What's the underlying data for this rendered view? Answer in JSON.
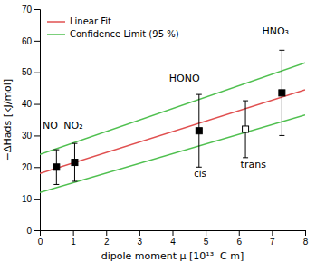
{
  "chart_data": {
    "type": "scatter",
    "xlabel": "dipole moment μ [10¹³  C m]",
    "ylabel": "−ΔHads [kJ/mol]",
    "xlim": [
      0,
      8
    ],
    "ylim": [
      0,
      70
    ],
    "xticks": [
      0,
      1,
      2,
      3,
      4,
      5,
      6,
      7,
      8
    ],
    "yticks": [
      0,
      10,
      20,
      30,
      40,
      50,
      60,
      70
    ],
    "legend": "upper left",
    "series": [
      {
        "name": "Linear Fit",
        "type": "line",
        "color": "#e05050",
        "x": [
          0.0,
          8.0
        ],
        "values": [
          18.0,
          44.5
        ]
      },
      {
        "name": "Confidence Limit (95 %)",
        "type": "line",
        "color": "#50c050",
        "x": [
          0.0,
          8.0
        ],
        "values": [
          24.0,
          53.0
        ]
      },
      {
        "type": "line",
        "color": "#50c050",
        "x": [
          0.0,
          8.0
        ],
        "values": [
          12.0,
          36.5
        ]
      },
      {
        "type": "scatter",
        "marker": "square",
        "color": "black",
        "x": [
          0.5,
          1.05,
          4.8,
          7.3
        ],
        "values": [
          20.0,
          21.5,
          31.5,
          43.5
        ],
        "errors": [
          5.5,
          6.0,
          11.5,
          13.5
        ],
        "labels": [
          "NO",
          "NO₂",
          "HONO",
          "HNO₃"
        ],
        "label_x": [
          0.08,
          0.72,
          3.9,
          6.7
        ],
        "label_y": [
          32,
          32,
          47,
          62
        ]
      },
      {
        "type": "scatter",
        "marker": "open-square",
        "color": "black",
        "x": [
          6.2
        ],
        "values": [
          32.0
        ],
        "errors": [
          9.0
        ],
        "labels": [
          "trans"
        ],
        "label_x": [
          6.05
        ],
        "label_y": [
          22.0
        ]
      }
    ],
    "annotations": [
      {
        "text": "cis",
        "x": 4.65,
        "y": 19.0
      }
    ]
  }
}
